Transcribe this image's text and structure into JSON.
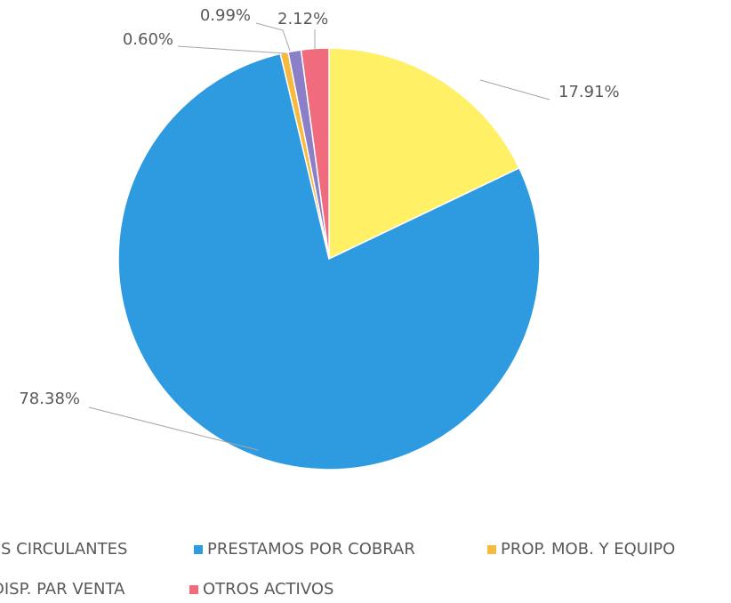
{
  "chart_data": {
    "type": "pie",
    "categories": [
      "S CIRCULANTES",
      "PRESTAMOS POR COBRAR",
      "PROP. MOB. Y EQUIPO",
      "DISP. PAR VENTA",
      "OTROS ACTIVOS"
    ],
    "values": [
      17.91,
      78.38,
      0.6,
      0.99,
      2.12
    ],
    "value_labels": [
      "17.91%",
      "78.38%",
      "0.60%",
      "0.99%",
      "2.12%"
    ],
    "colors": [
      "#fff066",
      "#2e9be0",
      "#f7b93e",
      "#8b7fc8",
      "#f06b7b"
    ],
    "legend": "bottom"
  }
}
